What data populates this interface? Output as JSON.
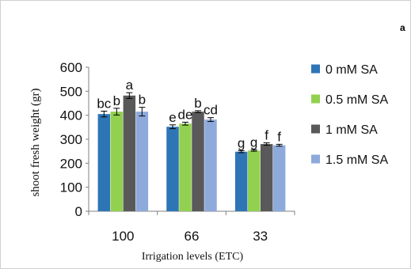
{
  "panel_letter": "a",
  "chart_data": {
    "type": "bar",
    "title": "",
    "xlabel": "Irrigation levels (ETC)",
    "ylabel": "shoot fresh weight  (gr)",
    "ylim": [
      0,
      600
    ],
    "yticks": [
      0,
      100,
      200,
      300,
      400,
      500,
      600
    ],
    "grid": false,
    "legend_position": "right",
    "categories": [
      "100",
      "66",
      "33"
    ],
    "series": [
      {
        "name": "0 mM SA",
        "color": "#2e75b6",
        "values": [
          405,
          352,
          248
        ],
        "errors": [
          12,
          8,
          4
        ],
        "labels": [
          "bc",
          "e",
          "g"
        ]
      },
      {
        "name": "0.5 mM SA",
        "color": "#92d050",
        "values": [
          415,
          365,
          253
        ],
        "errors": [
          14,
          6,
          3
        ],
        "labels": [
          "b",
          "de",
          "g"
        ]
      },
      {
        "name": "1 mM SA",
        "color": "#595959",
        "values": [
          482,
          415,
          280
        ],
        "errors": [
          12,
          4,
          5
        ],
        "labels": [
          "a",
          "b",
          "f"
        ]
      },
      {
        "name": "1.5 mM SA",
        "color": "#8eaadb",
        "values": [
          415,
          382,
          275
        ],
        "errors": [
          18,
          8,
          4
        ],
        "labels": [
          "b",
          "cd",
          "f"
        ]
      }
    ]
  }
}
